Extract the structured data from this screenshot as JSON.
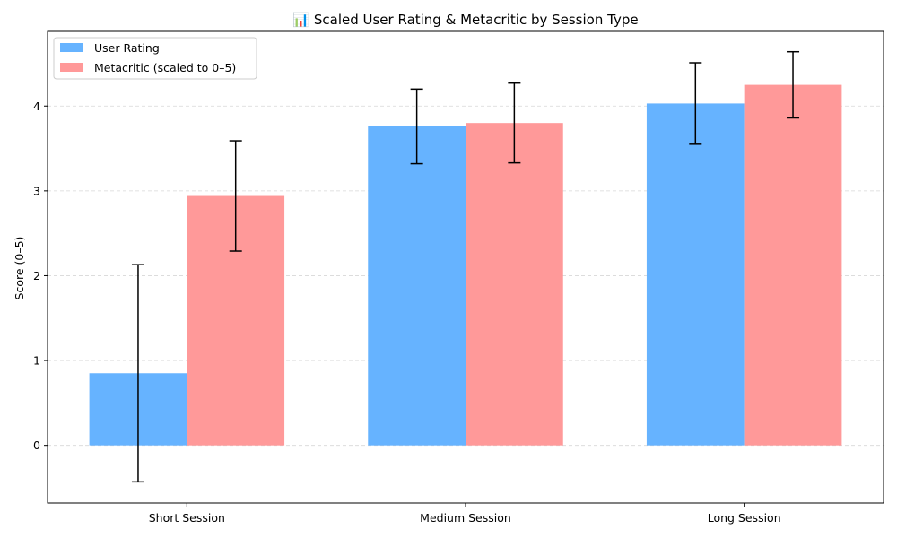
{
  "chart_data": {
    "type": "bar",
    "title": "📊 Scaled User Rating & Metacritic by Session Type",
    "xlabel": "",
    "ylabel": "Score (0–5)",
    "categories": [
      "Short Session",
      "Medium Session",
      "Long Session"
    ],
    "series": [
      {
        "name": "User Rating",
        "color": "#66b3ff",
        "values": [
          0.85,
          3.76,
          4.03
        ],
        "error": [
          1.28,
          0.44,
          0.48
        ]
      },
      {
        "name": "Metacritic (scaled to 0–5)",
        "color": "#ff9999",
        "values": [
          2.94,
          3.8,
          4.25
        ],
        "error": [
          0.65,
          0.47,
          0.39
        ]
      }
    ],
    "ylim": [
      -0.68,
      4.88
    ],
    "yticks": [
      0,
      1,
      2,
      3,
      4
    ],
    "grid": "y-dashed",
    "legend_position": "top-left"
  }
}
